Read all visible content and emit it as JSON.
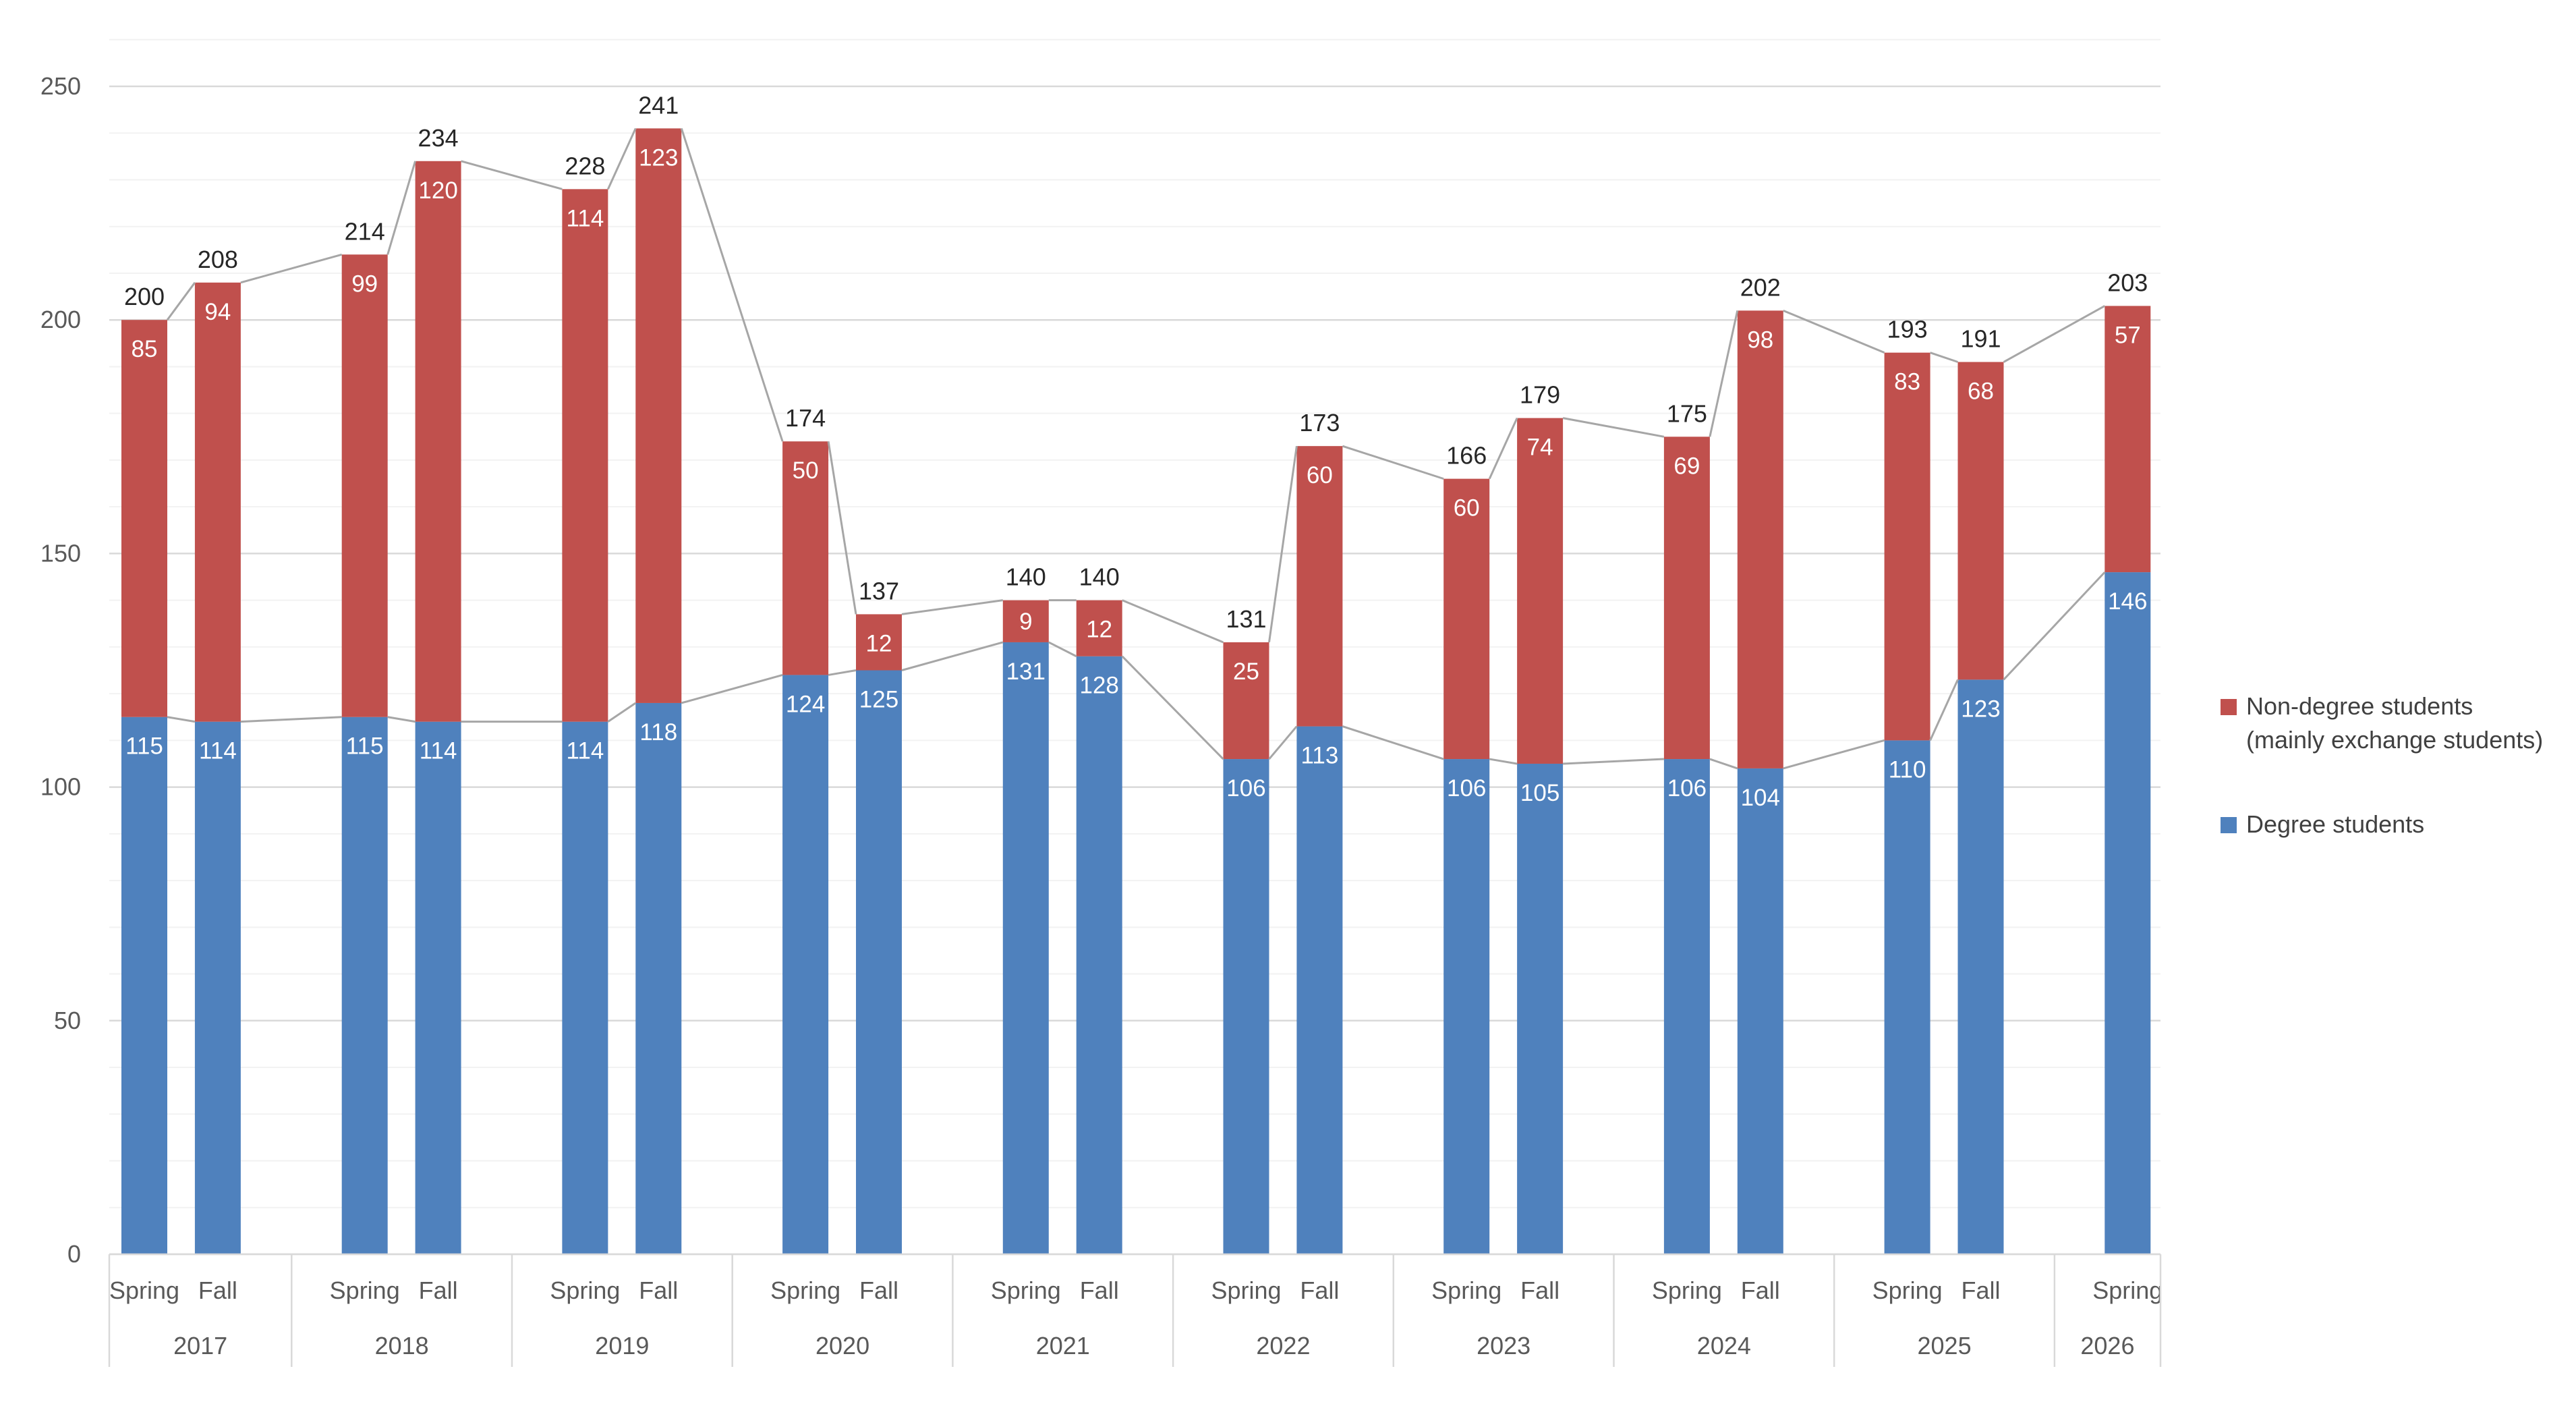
{
  "chart_data": {
    "type": "bar",
    "stacked": true,
    "x": [
      {
        "year": "2017",
        "term": "Spring"
      },
      {
        "year": "2017",
        "term": "Fall"
      },
      {
        "year": "2018",
        "term": "Spring"
      },
      {
        "year": "2018",
        "term": "Fall"
      },
      {
        "year": "2019",
        "term": "Spring"
      },
      {
        "year": "2019",
        "term": "Fall"
      },
      {
        "year": "2020",
        "term": "Spring"
      },
      {
        "year": "2020",
        "term": "Fall"
      },
      {
        "year": "2021",
        "term": "Spring"
      },
      {
        "year": "2021",
        "term": "Fall"
      },
      {
        "year": "2022",
        "term": "Spring"
      },
      {
        "year": "2022",
        "term": "Fall"
      },
      {
        "year": "2023",
        "term": "Spring"
      },
      {
        "year": "2023",
        "term": "Fall"
      },
      {
        "year": "2024",
        "term": "Spring"
      },
      {
        "year": "2024",
        "term": "Fall"
      },
      {
        "year": "2025",
        "term": "Spring"
      },
      {
        "year": "2025",
        "term": "Fall"
      },
      {
        "year": "2026",
        "term": "Spring"
      }
    ],
    "years": [
      "2017",
      "2018",
      "2019",
      "2020",
      "2021",
      "2022",
      "2023",
      "2024",
      "2025",
      "2026"
    ],
    "series": [
      {
        "name": "Degree students",
        "color": "#4F81BD",
        "values": [
          115,
          114,
          115,
          114,
          114,
          118,
          124,
          125,
          131,
          128,
          106,
          113,
          106,
          105,
          106,
          104,
          110,
          123,
          146
        ]
      },
      {
        "name": "Non-degree students (mainly exchange students)",
        "legend_lines": [
          "Non-degree students",
          "(mainly exchange students)"
        ],
        "color": "#C0504D",
        "values": [
          85,
          94,
          99,
          120,
          114,
          123,
          50,
          12,
          9,
          12,
          25,
          60,
          60,
          74,
          69,
          98,
          83,
          68,
          57
        ]
      }
    ],
    "totals": [
      200,
      208,
      214,
      234,
      228,
      241,
      174,
      137,
      140,
      140,
      131,
      173,
      166,
      179,
      175,
      202,
      193,
      191,
      203
    ],
    "ylim": [
      0,
      250
    ],
    "yticks": [
      "0",
      "50",
      "100",
      "150",
      "200",
      "250"
    ],
    "ytick_values": [
      0,
      50,
      100,
      150,
      200,
      250
    ],
    "minor_grid_step": 10,
    "grid": true,
    "connector_lines": true,
    "legend_position": "right",
    "title": "",
    "xlabel": "",
    "ylabel": ""
  }
}
